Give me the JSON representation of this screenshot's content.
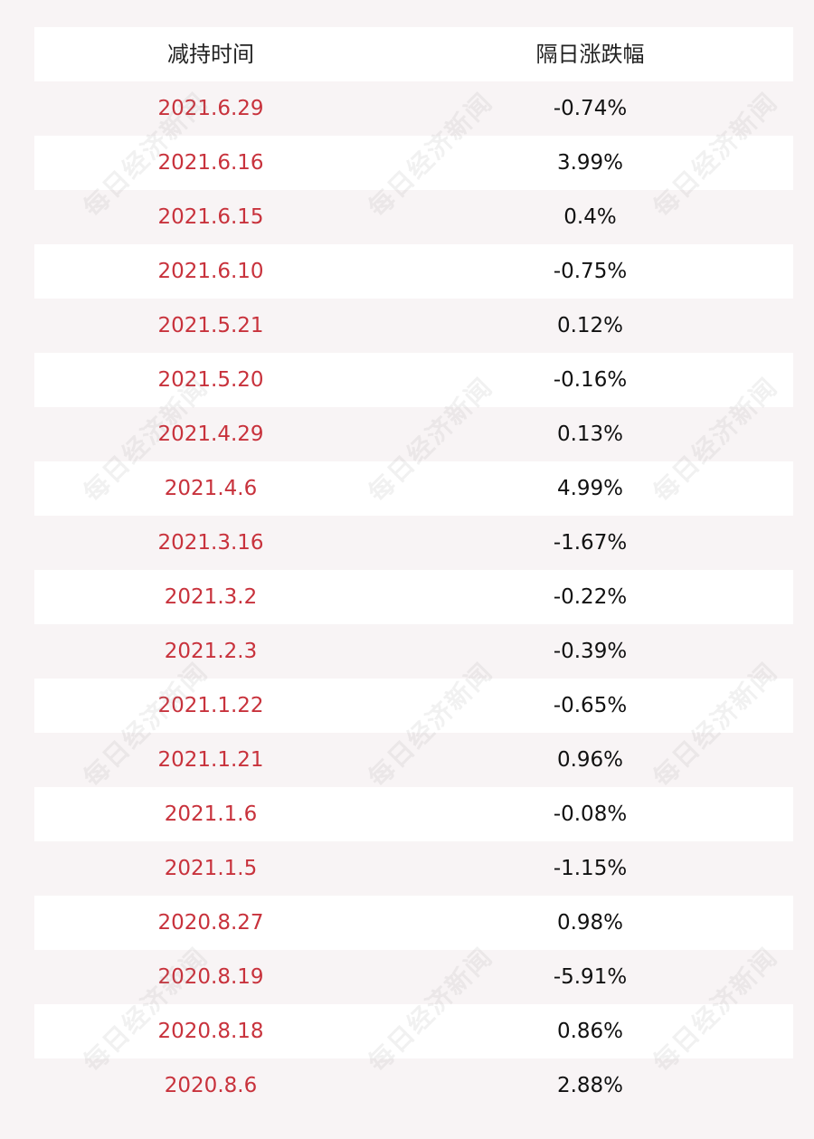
{
  "table": {
    "header": {
      "date": "减持时间",
      "change": "隔日涨跌幅"
    },
    "rows": [
      {
        "date": "2021.6.29",
        "change": "-0.74%"
      },
      {
        "date": "2021.6.16",
        "change": "3.99%"
      },
      {
        "date": "2021.6.15",
        "change": "0.4%"
      },
      {
        "date": "2021.6.10",
        "change": "-0.75%"
      },
      {
        "date": "2021.5.21",
        "change": "0.12%"
      },
      {
        "date": "2021.5.20",
        "change": "-0.16%"
      },
      {
        "date": "2021.4.29",
        "change": "0.13%"
      },
      {
        "date": "2021.4.6",
        "change": "4.99%"
      },
      {
        "date": "2021.3.16",
        "change": "-1.67%"
      },
      {
        "date": "2021.3.2",
        "change": "-0.22%"
      },
      {
        "date": "2021.2.3",
        "change": "-0.39%"
      },
      {
        "date": "2021.1.22",
        "change": "-0.65%"
      },
      {
        "date": "2021.1.21",
        "change": "0.96%"
      },
      {
        "date": "2021.1.6",
        "change": "-0.08%"
      },
      {
        "date": "2021.1.5",
        "change": "-1.15%"
      },
      {
        "date": "2020.8.27",
        "change": "0.98%"
      },
      {
        "date": "2020.8.19",
        "change": "-5.91%"
      },
      {
        "date": "2020.8.18",
        "change": "0.86%"
      },
      {
        "date": "2020.8.6",
        "change": "2.88%"
      }
    ]
  },
  "watermark": "每日经济新闻",
  "colors": {
    "date_text": "#c8323c",
    "value_text": "#111111",
    "row_alt": "#f8f4f5"
  }
}
